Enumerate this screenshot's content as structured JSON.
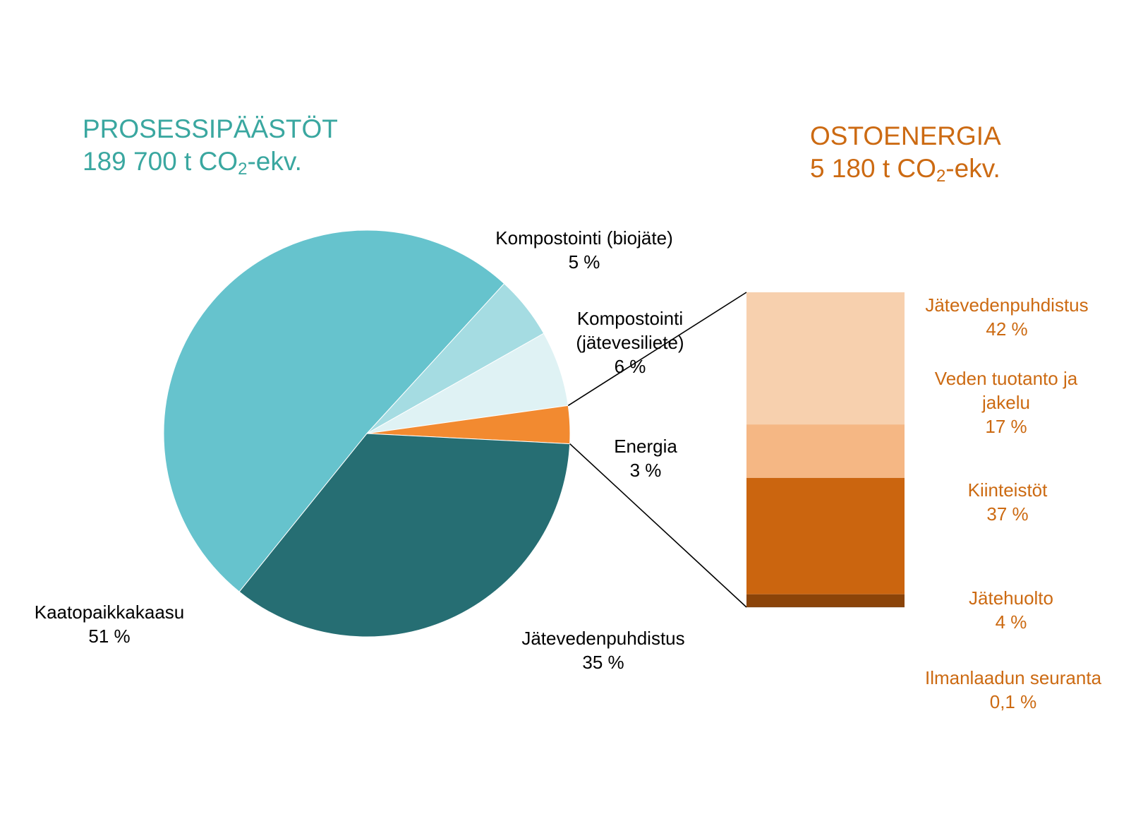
{
  "titles": {
    "left": {
      "line1": "PROSESSIPÄÄSTÖT",
      "line2_pre": "189 700 t CO",
      "sub": "2",
      "line2_post": "-ekv."
    },
    "right": {
      "line1": "OSTOENERGIA",
      "line2_pre": "5 180 t CO",
      "sub": "2",
      "line2_post": "-ekv."
    }
  },
  "chart_data": [
    {
      "type": "pie",
      "title": "PROSESSIPÄÄSTÖT 189 700 t CO2-ekv.",
      "slices": [
        {
          "label": "Kaatopaikkakaasu",
          "value": 51,
          "display": "51 %",
          "color": "#66c3cd"
        },
        {
          "label": "Kompostointi (biojäte)",
          "value": 5,
          "display": "5 %",
          "color": "#a5dce2"
        },
        {
          "label": "Kompostointi (jätevesiliete)",
          "value": 6,
          "display": "6 %",
          "color": "#dff2f4"
        },
        {
          "label": "Energia",
          "value": 3,
          "display": "3 %",
          "color": "#f28a30"
        },
        {
          "label": "Jätevedenpuhdistus",
          "value": 35,
          "display": "35 %",
          "color": "#266e73"
        }
      ]
    },
    {
      "type": "bar",
      "stacked": true,
      "title": "OSTOENERGIA 5 180 t CO2-ekv.",
      "segments": [
        {
          "label": "Jätevedenpuhdistus",
          "value": 42,
          "display": "42 %",
          "color": "#f7d0ae"
        },
        {
          "label": "Veden tuotanto ja jakelu",
          "value": 17,
          "display": "17 %",
          "color": "#f5b784"
        },
        {
          "label": "Kiinteistöt",
          "value": 37,
          "display": "37 %",
          "color": "#cb650f"
        },
        {
          "label": "Jätehuolto",
          "value": 4,
          "display": "4 %",
          "color": "#8b4409"
        },
        {
          "label": "Ilmanlaadun seuranta",
          "value": 0.1,
          "display": "0,1 %",
          "color": "#6b3306"
        }
      ]
    }
  ],
  "pie_labels": {
    "kaatopaikka": {
      "line1": "Kaatopaikkakaasu",
      "line2": "51 %"
    },
    "biojate": {
      "line1": "Kompostointi (biojäte)",
      "line2": "5 %"
    },
    "jatevesiliete": {
      "line1": "Kompostointi",
      "line2": "(jätevesiliete)",
      "line3": "6 %"
    },
    "energia": {
      "line1": "Energia",
      "line2": "3 %"
    },
    "jatevedenpuhdistus": {
      "line1": "Jätevedenpuhdistus",
      "line2": "35 %"
    }
  },
  "bar_labels": {
    "jatevedenpuhdistus": {
      "line1": "Jätevedenpuhdistus",
      "line2": "42 %"
    },
    "veden": {
      "line1": "Veden tuotanto ja",
      "line2": "jakelu",
      "line3": "17 %"
    },
    "kiinteistot": {
      "line1": "Kiinteistöt",
      "line2": "37 %"
    },
    "jatehuolto": {
      "line1": "Jätehuolto",
      "line2": "4 %"
    },
    "ilmanlaatu": {
      "line1": "Ilmanlaadun seuranta",
      "line2": "0,1 %"
    }
  }
}
